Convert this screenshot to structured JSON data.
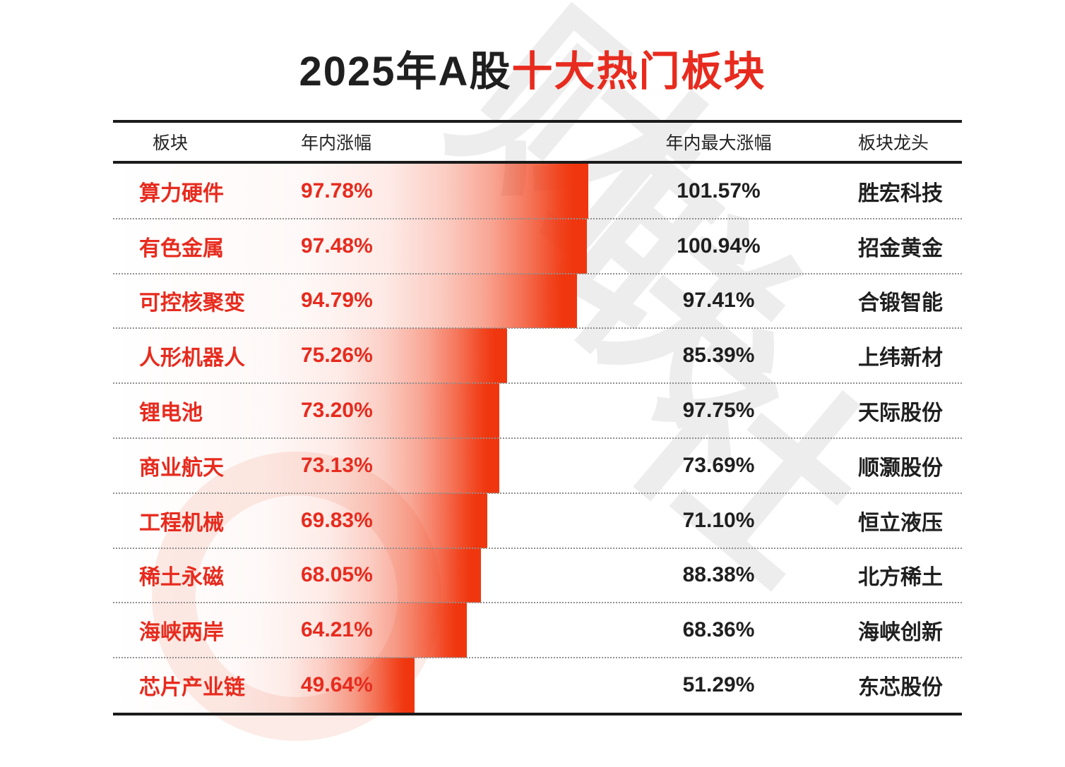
{
  "title": {
    "prefix": "2025年A股",
    "highlight": "十大热门板块"
  },
  "watermark": {
    "brand": "财联社",
    "chars": [
      "财",
      "联",
      "社"
    ]
  },
  "table": {
    "headers": [
      {
        "key": "sector",
        "label": "板块"
      },
      {
        "key": "ytd_gain",
        "label": "年内涨幅"
      },
      {
        "key": "max_gain",
        "label": "年内最大涨幅"
      },
      {
        "key": "leader",
        "label": "板块龙头"
      }
    ],
    "rows": [
      {
        "sector": "算力硬件",
        "ytd_gain": "97.78%",
        "ytd_gain_value": 97.78,
        "max_gain": "101.57%",
        "leader": "胜宏科技"
      },
      {
        "sector": "有色金属",
        "ytd_gain": "97.48%",
        "ytd_gain_value": 97.48,
        "max_gain": "100.94%",
        "leader": "招金黄金"
      },
      {
        "sector": "可控核聚变",
        "ytd_gain": "94.79%",
        "ytd_gain_value": 94.79,
        "max_gain": "97.41%",
        "leader": "合锻智能"
      },
      {
        "sector": "人形机器人",
        "ytd_gain": "75.26%",
        "ytd_gain_value": 75.26,
        "max_gain": "85.39%",
        "leader": "上纬新材"
      },
      {
        "sector": "锂电池",
        "ytd_gain": "73.20%",
        "ytd_gain_value": 73.2,
        "max_gain": "97.75%",
        "leader": "天际股份"
      },
      {
        "sector": "商业航天",
        "ytd_gain": "73.13%",
        "ytd_gain_value": 73.13,
        "max_gain": "73.69%",
        "leader": "顺灏股份"
      },
      {
        "sector": "工程机械",
        "ytd_gain": "69.83%",
        "ytd_gain_value": 69.83,
        "max_gain": "71.10%",
        "leader": "恒立液压"
      },
      {
        "sector": "稀土永磁",
        "ytd_gain": "68.05%",
        "ytd_gain_value": 68.05,
        "max_gain": "88.38%",
        "leader": "北方稀土"
      },
      {
        "sector": "海峡两岸",
        "ytd_gain": "64.21%",
        "ytd_gain_value": 64.21,
        "max_gain": "68.36%",
        "leader": "海峡创新"
      },
      {
        "sector": "芯片产业链",
        "ytd_gain": "49.64%",
        "ytd_gain_value": 49.64,
        "max_gain": "51.29%",
        "leader": "东芯股份"
      }
    ]
  },
  "colors": {
    "accent_red": "#e72b1e",
    "bar_red": "#f0360e",
    "text_black": "#1f1f1f",
    "watermark_gray": "#ededed",
    "watermark_pink": "#fcebe6"
  },
  "chart_data": {
    "type": "bar",
    "orientation": "horizontal",
    "title": "2025年A股十大热门板块",
    "categories": [
      "算力硬件",
      "有色金属",
      "可控核聚变",
      "人形机器人",
      "锂电池",
      "商业航天",
      "工程机械",
      "稀土永磁",
      "海峡两岸",
      "芯片产业链"
    ],
    "series": [
      {
        "name": "年内涨幅",
        "unit": "%",
        "values": [
          97.78,
          97.48,
          94.79,
          75.26,
          73.2,
          73.13,
          69.83,
          68.05,
          64.21,
          49.64
        ]
      },
      {
        "name": "年内最大涨幅",
        "unit": "%",
        "values": [
          101.57,
          100.94,
          97.41,
          85.39,
          97.75,
          73.69,
          71.1,
          88.38,
          68.36,
          51.29
        ]
      }
    ],
    "leaders": [
      "胜宏科技",
      "招金黄金",
      "合锻智能",
      "上纬新材",
      "天际股份",
      "顺灏股份",
      "恒立液压",
      "北方稀土",
      "海峡创新",
      "东芯股份"
    ],
    "legend_position": "none",
    "grid": false,
    "bar_encoding": "每行红色渐变条的右端位置对应该板块的年内涨幅"
  }
}
